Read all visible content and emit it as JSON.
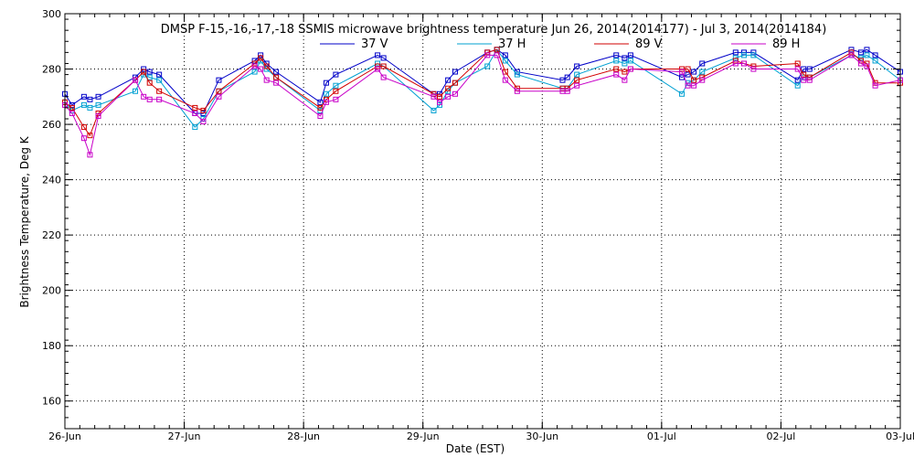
{
  "chart_data": {
    "type": "line",
    "title": "DMSP F-15,-16,-17,-18 SSMIS microwave brightness temperature Jun 26, 2014(2014177) - Jul  3, 2014(2014184)",
    "xlabel": "Date (EST)",
    "ylabel": "Brightness Temperature, Deg K",
    "xlim": [
      0,
      7
    ],
    "ylim": [
      150,
      300
    ],
    "yticks": [
      160,
      180,
      200,
      220,
      240,
      260,
      280,
      300
    ],
    "xticks": [
      {
        "value": 0,
        "label": "26-Jun"
      },
      {
        "value": 1,
        "label": "27-Jun"
      },
      {
        "value": 2,
        "label": "28-Jun"
      },
      {
        "value": 3,
        "label": "29-Jun"
      },
      {
        "value": 4,
        "label": "30-Jun"
      },
      {
        "value": 5,
        "label": "01-Jul"
      },
      {
        "value": 6,
        "label": "02-Jul"
      },
      {
        "value": 7,
        "label": "03-Jul"
      }
    ],
    "grid": true,
    "legend_placement": "top-center",
    "series": [
      {
        "name": "37 V",
        "color": "#0000c8",
        "points": [
          [
            0.0,
            271
          ],
          [
            0.06,
            267
          ],
          [
            0.16,
            270
          ],
          [
            0.21,
            269
          ],
          [
            0.28,
            270
          ],
          [
            0.59,
            277
          ],
          [
            0.66,
            280
          ],
          [
            0.71,
            279
          ],
          [
            0.79,
            278
          ],
          [
            1.09,
            264
          ],
          [
            1.16,
            264
          ],
          [
            1.29,
            276
          ],
          [
            1.59,
            283
          ],
          [
            1.64,
            285
          ],
          [
            1.69,
            282
          ],
          [
            1.77,
            279
          ],
          [
            2.14,
            268
          ],
          [
            2.19,
            275
          ],
          [
            2.27,
            278
          ],
          [
            2.62,
            285
          ],
          [
            2.67,
            284
          ],
          [
            3.09,
            271
          ],
          [
            3.14,
            271
          ],
          [
            3.21,
            276
          ],
          [
            3.27,
            279
          ],
          [
            3.54,
            286
          ],
          [
            3.62,
            287
          ],
          [
            3.69,
            285
          ],
          [
            3.79,
            279
          ],
          [
            4.17,
            276
          ],
          [
            4.21,
            277
          ],
          [
            4.29,
            281
          ],
          [
            4.62,
            285
          ],
          [
            4.69,
            284
          ],
          [
            4.74,
            285
          ],
          [
            5.17,
            277
          ],
          [
            5.22,
            278
          ],
          [
            5.27,
            279
          ],
          [
            5.34,
            282
          ],
          [
            5.62,
            286
          ],
          [
            5.69,
            286
          ],
          [
            5.77,
            286
          ],
          [
            6.14,
            276
          ],
          [
            6.19,
            280
          ],
          [
            6.24,
            280
          ],
          [
            6.59,
            287
          ],
          [
            6.67,
            286
          ],
          [
            6.72,
            287
          ],
          [
            6.79,
            285
          ],
          [
            7.0,
            279
          ]
        ]
      },
      {
        "name": "37 H",
        "color": "#00a0d2",
        "points": [
          [
            0.0,
            268
          ],
          [
            0.06,
            265
          ],
          [
            0.16,
            267
          ],
          [
            0.21,
            266
          ],
          [
            0.28,
            267
          ],
          [
            0.59,
            272
          ],
          [
            0.66,
            278
          ],
          [
            0.71,
            277
          ],
          [
            0.79,
            276
          ],
          [
            1.09,
            259
          ],
          [
            1.16,
            262
          ],
          [
            1.29,
            272
          ],
          [
            1.59,
            279
          ],
          [
            1.64,
            283
          ],
          [
            1.69,
            280
          ],
          [
            1.77,
            277
          ],
          [
            2.14,
            265
          ],
          [
            2.19,
            271
          ],
          [
            2.27,
            274
          ],
          [
            2.62,
            282
          ],
          [
            2.67,
            281
          ],
          [
            3.09,
            265
          ],
          [
            3.14,
            267
          ],
          [
            3.21,
            272
          ],
          [
            3.27,
            275
          ],
          [
            3.54,
            281
          ],
          [
            3.62,
            287
          ],
          [
            3.69,
            283
          ],
          [
            3.79,
            278
          ],
          [
            4.17,
            273
          ],
          [
            4.21,
            273
          ],
          [
            4.29,
            278
          ],
          [
            4.62,
            283
          ],
          [
            4.69,
            282
          ],
          [
            4.74,
            283
          ],
          [
            5.17,
            271
          ],
          [
            5.22,
            275
          ],
          [
            5.27,
            276
          ],
          [
            5.34,
            279
          ],
          [
            5.62,
            284
          ],
          [
            5.69,
            285
          ],
          [
            5.77,
            285
          ],
          [
            6.14,
            274
          ],
          [
            6.19,
            277
          ],
          [
            6.24,
            277
          ],
          [
            6.59,
            285
          ],
          [
            6.67,
            284
          ],
          [
            6.72,
            285
          ],
          [
            6.79,
            283
          ],
          [
            7.0,
            276
          ]
        ]
      },
      {
        "name": "89 V",
        "color": "#d20000",
        "points": [
          [
            0.0,
            268
          ],
          [
            0.06,
            266
          ],
          [
            0.16,
            259
          ],
          [
            0.21,
            256
          ],
          [
            0.28,
            264
          ],
          [
            0.59,
            276
          ],
          [
            0.66,
            279
          ],
          [
            0.71,
            275
          ],
          [
            0.79,
            272
          ],
          [
            1.09,
            266
          ],
          [
            1.16,
            265
          ],
          [
            1.29,
            272
          ],
          [
            1.59,
            282
          ],
          [
            1.64,
            284
          ],
          [
            1.69,
            281
          ],
          [
            1.77,
            277
          ],
          [
            2.14,
            266
          ],
          [
            2.19,
            269
          ],
          [
            2.27,
            272
          ],
          [
            2.62,
            281
          ],
          [
            2.67,
            281
          ],
          [
            3.09,
            271
          ],
          [
            3.14,
            270
          ],
          [
            3.21,
            273
          ],
          [
            3.27,
            275
          ],
          [
            3.54,
            286
          ],
          [
            3.62,
            287
          ],
          [
            3.69,
            279
          ],
          [
            3.79,
            273
          ],
          [
            4.17,
            273
          ],
          [
            4.21,
            273
          ],
          [
            4.29,
            276
          ],
          [
            4.62,
            280
          ],
          [
            4.69,
            279
          ],
          [
            4.74,
            280
          ],
          [
            5.17,
            280
          ],
          [
            5.22,
            280
          ],
          [
            5.27,
            276
          ],
          [
            5.34,
            277
          ],
          [
            5.62,
            283
          ],
          [
            5.69,
            282
          ],
          [
            5.77,
            281
          ],
          [
            6.14,
            282
          ],
          [
            6.19,
            278
          ],
          [
            6.24,
            277
          ],
          [
            6.59,
            286
          ],
          [
            6.67,
            283
          ],
          [
            6.72,
            282
          ],
          [
            6.79,
            275
          ],
          [
            7.0,
            275
          ]
        ]
      },
      {
        "name": "89 H",
        "color": "#c800c8",
        "points": [
          [
            0.0,
            267
          ],
          [
            0.06,
            264
          ],
          [
            0.16,
            255
          ],
          [
            0.21,
            249
          ],
          [
            0.28,
            263
          ],
          [
            0.59,
            276
          ],
          [
            0.66,
            270
          ],
          [
            0.71,
            269
          ],
          [
            0.79,
            269
          ],
          [
            1.09,
            264
          ],
          [
            1.16,
            261
          ],
          [
            1.29,
            270
          ],
          [
            1.59,
            281
          ],
          [
            1.64,
            280
          ],
          [
            1.69,
            276
          ],
          [
            1.77,
            275
          ],
          [
            2.14,
            263
          ],
          [
            2.19,
            268
          ],
          [
            2.27,
            269
          ],
          [
            2.62,
            280
          ],
          [
            2.67,
            277
          ],
          [
            3.09,
            270
          ],
          [
            3.14,
            268
          ],
          [
            3.21,
            270
          ],
          [
            3.27,
            271
          ],
          [
            3.54,
            285
          ],
          [
            3.62,
            285
          ],
          [
            3.69,
            276
          ],
          [
            3.79,
            272
          ],
          [
            4.17,
            272
          ],
          [
            4.21,
            272
          ],
          [
            4.29,
            274
          ],
          [
            4.62,
            278
          ],
          [
            4.69,
            276
          ],
          [
            4.74,
            280
          ],
          [
            5.17,
            279
          ],
          [
            5.22,
            274
          ],
          [
            5.27,
            274
          ],
          [
            5.34,
            276
          ],
          [
            5.62,
            282
          ],
          [
            5.69,
            282
          ],
          [
            5.77,
            280
          ],
          [
            6.14,
            280
          ],
          [
            6.19,
            276
          ],
          [
            6.24,
            276
          ],
          [
            6.59,
            285
          ],
          [
            6.67,
            282
          ],
          [
            6.72,
            281
          ],
          [
            6.79,
            274
          ],
          [
            7.0,
            276
          ]
        ]
      }
    ]
  }
}
